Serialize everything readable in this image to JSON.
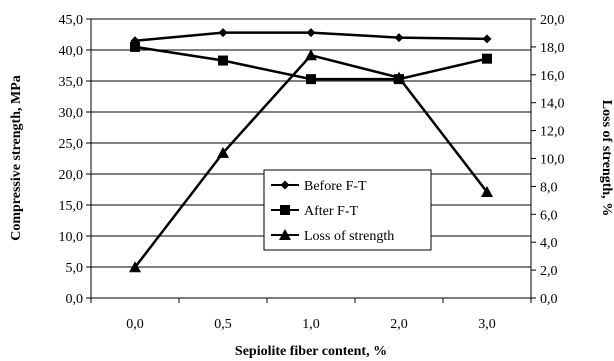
{
  "chart_data": {
    "type": "line",
    "categories": [
      "0,0",
      "0,5",
      "1,0",
      "2,0",
      "3,0"
    ],
    "xlabel": "Sepiolite fiber content, %",
    "ylabel": "Compressive strength, MPa",
    "y2label": "Loss of strength, %",
    "ylim": [
      0,
      45
    ],
    "y2lim": [
      0,
      20
    ],
    "yticks": [
      "0,0",
      "5,0",
      "10,0",
      "15,0",
      "20,0",
      "25,0",
      "30,0",
      "35,0",
      "40,0",
      "45,0"
    ],
    "y2ticks": [
      "0,0",
      "2,0",
      "4,0",
      "6,0",
      "8,0",
      "10,0",
      "12,0",
      "14,0",
      "16,0",
      "18,0",
      "20,0"
    ],
    "grid": "horizontal",
    "legend_position": "inside-center-right",
    "series": [
      {
        "name": "Before F-T",
        "axis": "left",
        "marker": "diamond",
        "values": [
          41.5,
          42.8,
          42.8,
          42.0,
          41.8
        ]
      },
      {
        "name": "After F-T",
        "axis": "left",
        "marker": "square",
        "values": [
          40.5,
          38.3,
          35.3,
          35.3,
          38.6
        ]
      },
      {
        "name": "Loss of strength",
        "axis": "right",
        "marker": "triangle",
        "values": [
          2.2,
          10.4,
          17.4,
          15.8,
          7.6
        ]
      }
    ]
  }
}
